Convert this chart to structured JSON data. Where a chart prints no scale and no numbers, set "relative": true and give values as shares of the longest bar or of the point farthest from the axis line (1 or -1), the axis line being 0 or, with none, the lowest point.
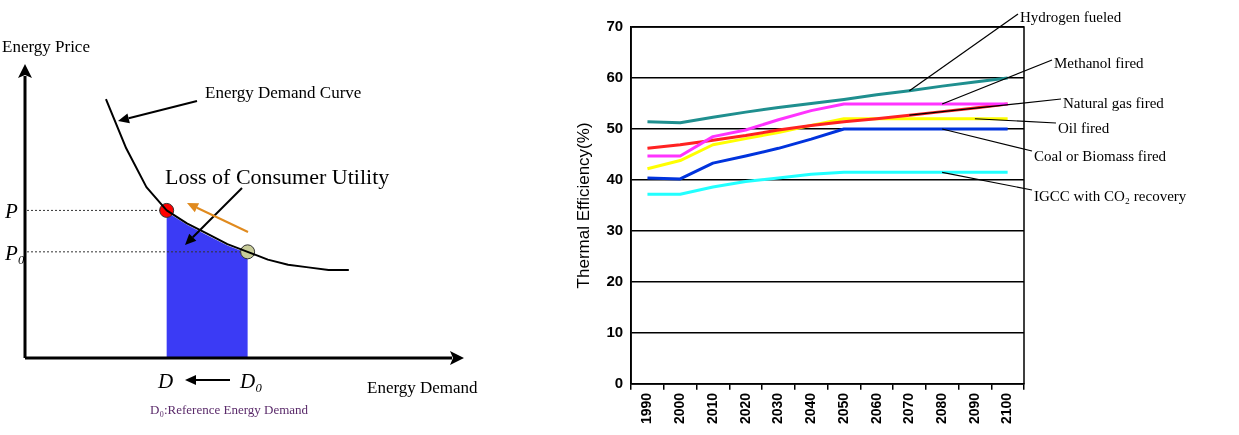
{
  "chart_data": [
    {
      "type": "line",
      "relative": true,
      "legend": false,
      "xlabel": "Energy Demand",
      "ylabel": "Energy Price",
      "categories": [
        null,
        null,
        null,
        null,
        null,
        null,
        null,
        null,
        null,
        null,
        null,
        null,
        null,
        null,
        null,
        null,
        null,
        null,
        null,
        null,
        null,
        null
      ],
      "series": [
        {
          "color": "#000000",
          "values": [
            null,
            null,
            null,
            null,
            1,
            0.81,
            0.66,
            0.57,
            0.52,
            0.48,
            0.44,
            0.41,
            0.38,
            0.36,
            0.35,
            0.34,
            0.34,
            null,
            null,
            null,
            null,
            null
          ]
        }
      ],
      "annotations": [
        "Energy Demand Curve",
        "Loss of Consumer Utility",
        "P",
        "P₀",
        "D",
        "D₀",
        "D₀:Reference Energy Demand"
      ]
    },
    {
      "type": "line",
      "ylabel": "Thermal Efficiency(%)",
      "legend": false,
      "grid": "y",
      "categories": [
        "1990",
        "2000",
        "2010",
        "2020",
        "2030",
        "2040",
        "2050",
        "2060",
        "2070",
        "2080",
        "2090",
        "2100"
      ],
      "ylim": [
        0,
        70
      ],
      "yticks": [
        0,
        10,
        20,
        30,
        40,
        50,
        60,
        70
      ],
      "series": [
        {
          "name": "Hydrogen fueled",
          "color": "#1f8f8f",
          "values": [
            51.4,
            51.2,
            52.3,
            53.3,
            54.2,
            55,
            55.8,
            56.7,
            57.5,
            58.4,
            59.2,
            60
          ]
        },
        {
          "name": "Methanol fired",
          "color": "#ff33ff",
          "values": [
            44.7,
            44.7,
            48.5,
            49.8,
            51.8,
            53.6,
            54.9,
            54.9,
            54.9,
            54.9,
            54.9,
            54.9
          ]
        },
        {
          "name": "Natural gas fired",
          "color": "#ff2222",
          "values": [
            46.2,
            46.9,
            47.8,
            48.7,
            49.8,
            50.7,
            51.4,
            52,
            52.7,
            53.4,
            54.1,
            54.9
          ]
        },
        {
          "name": "Oil fired",
          "color": "#ffff00",
          "values": [
            42.2,
            43.8,
            46.9,
            48.1,
            49.3,
            50.7,
            52,
            52,
            52,
            52,
            52,
            52
          ]
        },
        {
          "name": "Coal or Biomass fired",
          "color": "#0033dd",
          "values": [
            40.4,
            40.2,
            43.3,
            44.7,
            46.2,
            48,
            50,
            50,
            50,
            50,
            50,
            50
          ]
        },
        {
          "name": "IGCC with CO₂ recovery",
          "color": "#22ffff",
          "values": [
            37.2,
            37.2,
            38.6,
            39.7,
            40.4,
            41.1,
            41.5,
            41.5,
            41.5,
            41.5,
            41.5,
            41.5
          ]
        }
      ]
    }
  ]
}
